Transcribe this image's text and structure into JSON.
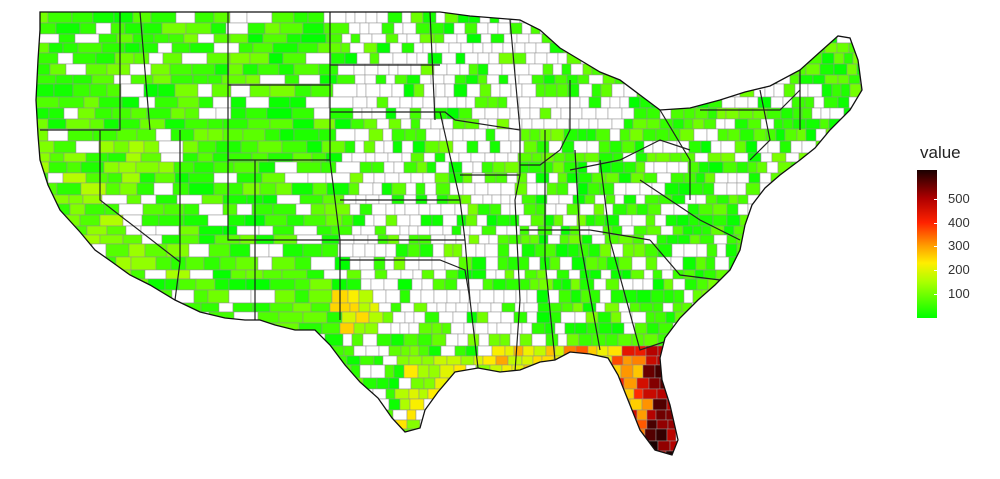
{
  "map": {
    "name": "Contiguous United States county choropleth",
    "colors": {
      "background": "#ffffff",
      "no_data": "#ffffff",
      "border": "#8f8f8f",
      "state_border": "#222222"
    }
  },
  "legend": {
    "title": "value",
    "min": 0,
    "max": 620,
    "ticks": [
      "100",
      "200",
      "300",
      "400",
      "500"
    ],
    "tick_values": [
      100,
      200,
      300,
      400,
      500
    ],
    "gradient": [
      {
        "value": 0,
        "color": "#00ff00"
      },
      {
        "value": 150,
        "color": "#aaff00"
      },
      {
        "value": 230,
        "color": "#ffee00"
      },
      {
        "value": 300,
        "color": "#ffa000"
      },
      {
        "value": 400,
        "color": "#ff2200"
      },
      {
        "value": 500,
        "color": "#b00000"
      },
      {
        "value": 620,
        "color": "#1a0000"
      }
    ]
  },
  "hotspots": [
    {
      "region": "South Florida",
      "level": "500+"
    },
    {
      "region": "Florida Gulf coast",
      "level": "300-500"
    },
    {
      "region": "Louisiana coast",
      "level": "200-300"
    },
    {
      "region": "Texas Gulf coast",
      "level": "150-250"
    }
  ]
}
